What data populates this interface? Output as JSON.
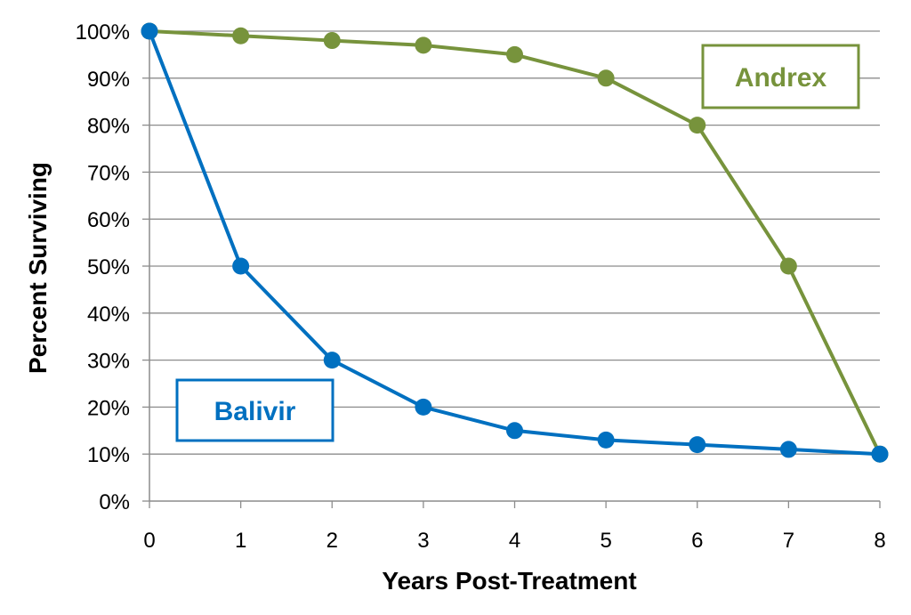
{
  "chart_data": {
    "type": "line",
    "title": "",
    "xlabel": "Years Post-Treatment",
    "ylabel": "Percent Surviving",
    "x": [
      0,
      1,
      2,
      3,
      4,
      5,
      6,
      7,
      8
    ],
    "xlim": [
      0,
      8
    ],
    "ylim": [
      0,
      100
    ],
    "yticks": [
      0,
      10,
      20,
      30,
      40,
      50,
      60,
      70,
      80,
      90,
      100
    ],
    "ytick_labels": [
      "0%",
      "10%",
      "20%",
      "30%",
      "40%",
      "50%",
      "60%",
      "70%",
      "80%",
      "90%",
      "100%"
    ],
    "xtick_labels": [
      "0",
      "1",
      "2",
      "3",
      "4",
      "5",
      "6",
      "7",
      "8"
    ],
    "grid": true,
    "series": [
      {
        "name": "Andrex",
        "color": "#77933c",
        "values": [
          100,
          99,
          98,
          97,
          95,
          90,
          80,
          50,
          10
        ],
        "legend_position": "top-right"
      },
      {
        "name": "Balivir",
        "color": "#0070c0",
        "values": [
          100,
          50,
          30,
          20,
          15,
          13,
          12,
          11,
          10
        ],
        "legend_position": "bottom-left"
      }
    ]
  }
}
